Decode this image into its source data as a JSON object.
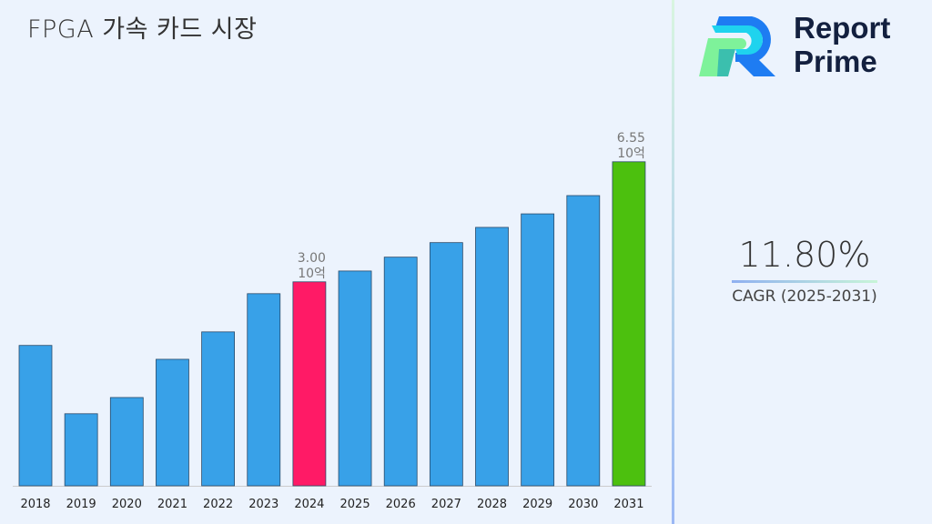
{
  "title": "FPGA 가속 카드 시장",
  "logo": {
    "line1": "Report",
    "line2": "Prime"
  },
  "cagr": {
    "value": "11.80%",
    "label": "CAGR (2025-2031)"
  },
  "chart_data": {
    "type": "bar",
    "categories": [
      "2018",
      "2019",
      "2020",
      "2021",
      "2022",
      "2023",
      "2024",
      "2025",
      "2026",
      "2027",
      "2028",
      "2029",
      "2030",
      "2031"
    ],
    "values": [
      1.12,
      -0.9,
      -0.42,
      0.71,
      1.52,
      2.65,
      3.0,
      3.32,
      3.73,
      4.16,
      4.61,
      5.01,
      5.55,
      6.55
    ],
    "ylim": [
      -3.03,
      7.2
    ],
    "grid": false,
    "colors": {
      "default": "#38a1e8",
      "highlight_2024": "#ff1a66",
      "highlight_2031": "#4cc00e"
    },
    "data_labels": [
      {
        "category": "2024",
        "value": "3.00",
        "unit": "10억"
      },
      {
        "category": "2031",
        "value": "6.55",
        "unit": "10억"
      }
    ]
  }
}
